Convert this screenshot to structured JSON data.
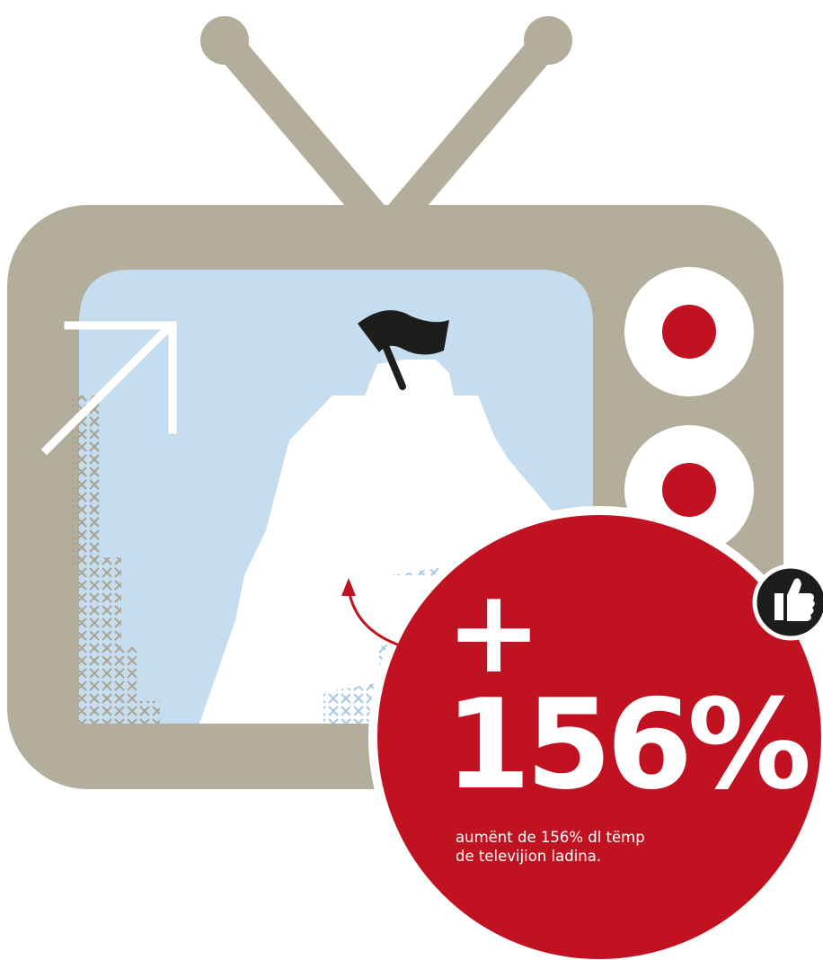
{
  "colors": {
    "tv_body": "#b2ae9b",
    "screen": "#c6ddf0",
    "accent_red": "#c11222",
    "flag": "#1d1d1b",
    "mountain": "#ffffff",
    "cross_pattern_tv": "#a9a392",
    "cross_pattern_screen": "#a8c6e6",
    "badge": "#1d1d1b"
  },
  "icons": {
    "arrow": "arrow-up-right-icon",
    "flag": "flag-icon",
    "thumb": "thumbs-up-icon",
    "curved_arrow": "curved-arrow-icon"
  },
  "stat": {
    "plus": "+",
    "value": "156%",
    "caption_line1": "aumënt de 156% dl tëmp",
    "caption_line2": "de televijion ladina."
  }
}
